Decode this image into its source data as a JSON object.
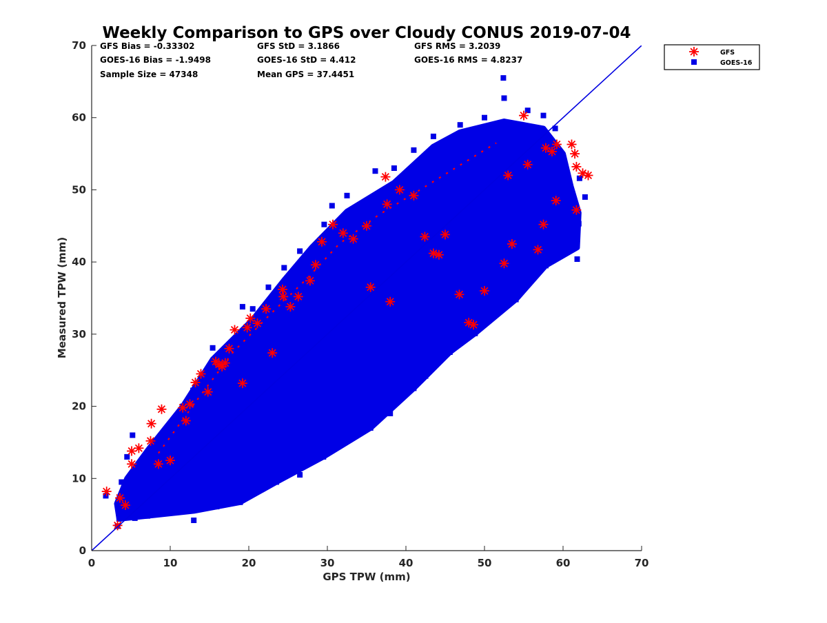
{
  "chart_data": {
    "type": "scatter",
    "title": "Weekly Comparison to GPS over Cloudy CONUS 2019-07-04",
    "xlabel": "GPS TPW (mm)",
    "ylabel": "Measured TPW (mm)",
    "xlim": [
      0,
      70
    ],
    "ylim": [
      0,
      70
    ],
    "xticks": [
      "0",
      "10",
      "20",
      "30",
      "40",
      "50",
      "60",
      "70"
    ],
    "yticks": [
      "0",
      "10",
      "20",
      "30",
      "40",
      "50",
      "60",
      "70"
    ],
    "grid": false,
    "legend_position": "top-right, outside axes",
    "reference_line": {
      "from": [
        0,
        0
      ],
      "to": [
        70,
        70
      ],
      "color": "#0000e0"
    },
    "stats": {
      "gfs_bias": "GFS Bias = -0.33302",
      "gfs_std": "GFS StD = 3.1866",
      "gfs_rms": "GFS RMS = 3.2039",
      "goes_bias": "GOES-16 Bias = -1.9498",
      "goes_std": "GOES-16 StD = 4.412",
      "goes_rms": "GOES-16 RMS = 4.8237",
      "sample_size": "Sample Size = 47348",
      "mean_gps": "Mean GPS = 37.4451"
    },
    "series": [
      {
        "name": "GFS",
        "marker": "asterisk",
        "color": "#ff0000",
        "points": [
          [
            1.9,
            8.2
          ],
          [
            3.3,
            3.5
          ],
          [
            3.6,
            7.3
          ],
          [
            4.3,
            6.3
          ],
          [
            5.1,
            13.8
          ],
          [
            5.1,
            12.0
          ],
          [
            6.0,
            14.2
          ],
          [
            7.6,
            17.6
          ],
          [
            7.5,
            15.2
          ],
          [
            8.9,
            19.6
          ],
          [
            11.6,
            19.8
          ],
          [
            12.5,
            20.3
          ],
          [
            13.2,
            23.3
          ],
          [
            13.9,
            24.5
          ],
          [
            14.8,
            22.0
          ],
          [
            15.8,
            26.2
          ],
          [
            16.6,
            25.5
          ],
          [
            17.5,
            28.0
          ],
          [
            18.2,
            30.6
          ],
          [
            19.8,
            30.9
          ],
          [
            20.2,
            32.2
          ],
          [
            21.1,
            31.5
          ],
          [
            22.2,
            33.5
          ],
          [
            24.3,
            36.2
          ],
          [
            24.4,
            35.2
          ],
          [
            25.3,
            33.8
          ],
          [
            26.3,
            35.2
          ],
          [
            28.5,
            39.6
          ],
          [
            29.3,
            42.8
          ],
          [
            30.7,
            45.2
          ],
          [
            32.0,
            44.0
          ],
          [
            33.3,
            43.2
          ],
          [
            35.0,
            45.0
          ],
          [
            37.6,
            48.0
          ],
          [
            37.4,
            51.8
          ],
          [
            39.2,
            50.0
          ],
          [
            41.0,
            49.2
          ],
          [
            42.4,
            43.5
          ],
          [
            43.5,
            41.2
          ],
          [
            45.0,
            43.8
          ],
          [
            48.0,
            31.6
          ],
          [
            48.6,
            31.3
          ],
          [
            52.5,
            39.8
          ],
          [
            53.5,
            42.5
          ],
          [
            55.0,
            60.3
          ],
          [
            56.8,
            41.7
          ],
          [
            57.5,
            45.2
          ],
          [
            57.8,
            55.8
          ],
          [
            58.6,
            55.3
          ],
          [
            59.2,
            56.3
          ],
          [
            61.1,
            56.3
          ],
          [
            61.5,
            55.0
          ],
          [
            61.7,
            53.2
          ],
          [
            62.5,
            52.3
          ],
          [
            63.2,
            52.0
          ],
          [
            61.7,
            47.2
          ],
          [
            59.1,
            48.5
          ],
          [
            55.5,
            53.5
          ],
          [
            53.0,
            52.0
          ],
          [
            50.0,
            36.0
          ],
          [
            46.8,
            35.5
          ],
          [
            44.2,
            41.0
          ],
          [
            38.0,
            34.5
          ],
          [
            35.5,
            36.5
          ],
          [
            27.8,
            37.4
          ],
          [
            23.0,
            27.4
          ],
          [
            19.2,
            23.2
          ],
          [
            17.0,
            26.0
          ],
          [
            16.2,
            25.8
          ],
          [
            12.0,
            18.0
          ],
          [
            10.0,
            12.5
          ],
          [
            8.5,
            12.0
          ]
        ]
      },
      {
        "name": "GOES-16",
        "marker": "square",
        "color": "#0000e6",
        "points": [
          [
            1.8,
            7.6
          ],
          [
            3.3,
            3.4
          ],
          [
            3.5,
            4.4
          ],
          [
            4.5,
            5.0
          ],
          [
            5.5,
            4.5
          ],
          [
            7.1,
            4.8
          ],
          [
            8.4,
            6.0
          ],
          [
            13.0,
            4.2
          ],
          [
            15.9,
            6.1
          ],
          [
            18.9,
            6.7
          ],
          [
            20.5,
            8.6
          ],
          [
            23.5,
            9.5
          ],
          [
            26.5,
            10.5
          ],
          [
            29.5,
            13.0
          ],
          [
            32.5,
            16.0
          ],
          [
            35.5,
            17.0
          ],
          [
            38.0,
            19.0
          ],
          [
            41.0,
            22.5
          ],
          [
            42.5,
            24.2
          ],
          [
            45.6,
            27.5
          ],
          [
            48.8,
            30.1
          ],
          [
            51.0,
            33.2
          ],
          [
            54.0,
            34.8
          ],
          [
            56.8,
            38.6
          ],
          [
            57.8,
            39.5
          ],
          [
            61.8,
            40.4
          ],
          [
            62.0,
            45.3
          ],
          [
            62.8,
            49.0
          ],
          [
            62.1,
            51.6
          ],
          [
            61.0,
            46.8
          ],
          [
            60.0,
            50.0
          ],
          [
            59.0,
            58.5
          ],
          [
            57.5,
            60.3
          ],
          [
            55.5,
            61.0
          ],
          [
            52.4,
            65.5
          ],
          [
            52.5,
            62.7
          ],
          [
            50.0,
            60.0
          ],
          [
            46.9,
            59.0
          ],
          [
            43.5,
            57.4
          ],
          [
            41.0,
            55.5
          ],
          [
            38.5,
            53.0
          ],
          [
            36.1,
            52.6
          ],
          [
            32.5,
            49.2
          ],
          [
            30.6,
            47.8
          ],
          [
            29.6,
            45.2
          ],
          [
            26.5,
            41.5
          ],
          [
            24.5,
            39.2
          ],
          [
            22.5,
            36.5
          ],
          [
            20.5,
            33.5
          ],
          [
            19.2,
            33.8
          ],
          [
            15.4,
            28.1
          ],
          [
            12.9,
            22.2
          ],
          [
            11.6,
            20.0
          ],
          [
            9.5,
            16.5
          ],
          [
            7.2,
            13.2
          ],
          [
            5.2,
            16.0
          ],
          [
            4.5,
            13.0
          ],
          [
            3.8,
            9.5
          ],
          [
            28.7,
            23.0
          ],
          [
            33.0,
            28.0
          ],
          [
            41.5,
            40.0
          ],
          [
            47.0,
            48.0
          ],
          [
            36.0,
            32.0
          ],
          [
            22.0,
            16.0
          ],
          [
            17.0,
            14.0
          ],
          [
            50.5,
            50.0
          ],
          [
            55.5,
            54.0
          ],
          [
            44.0,
            38.0
          ],
          [
            26.0,
            22.0
          ],
          [
            12.0,
            10.0
          ]
        ]
      }
    ]
  }
}
